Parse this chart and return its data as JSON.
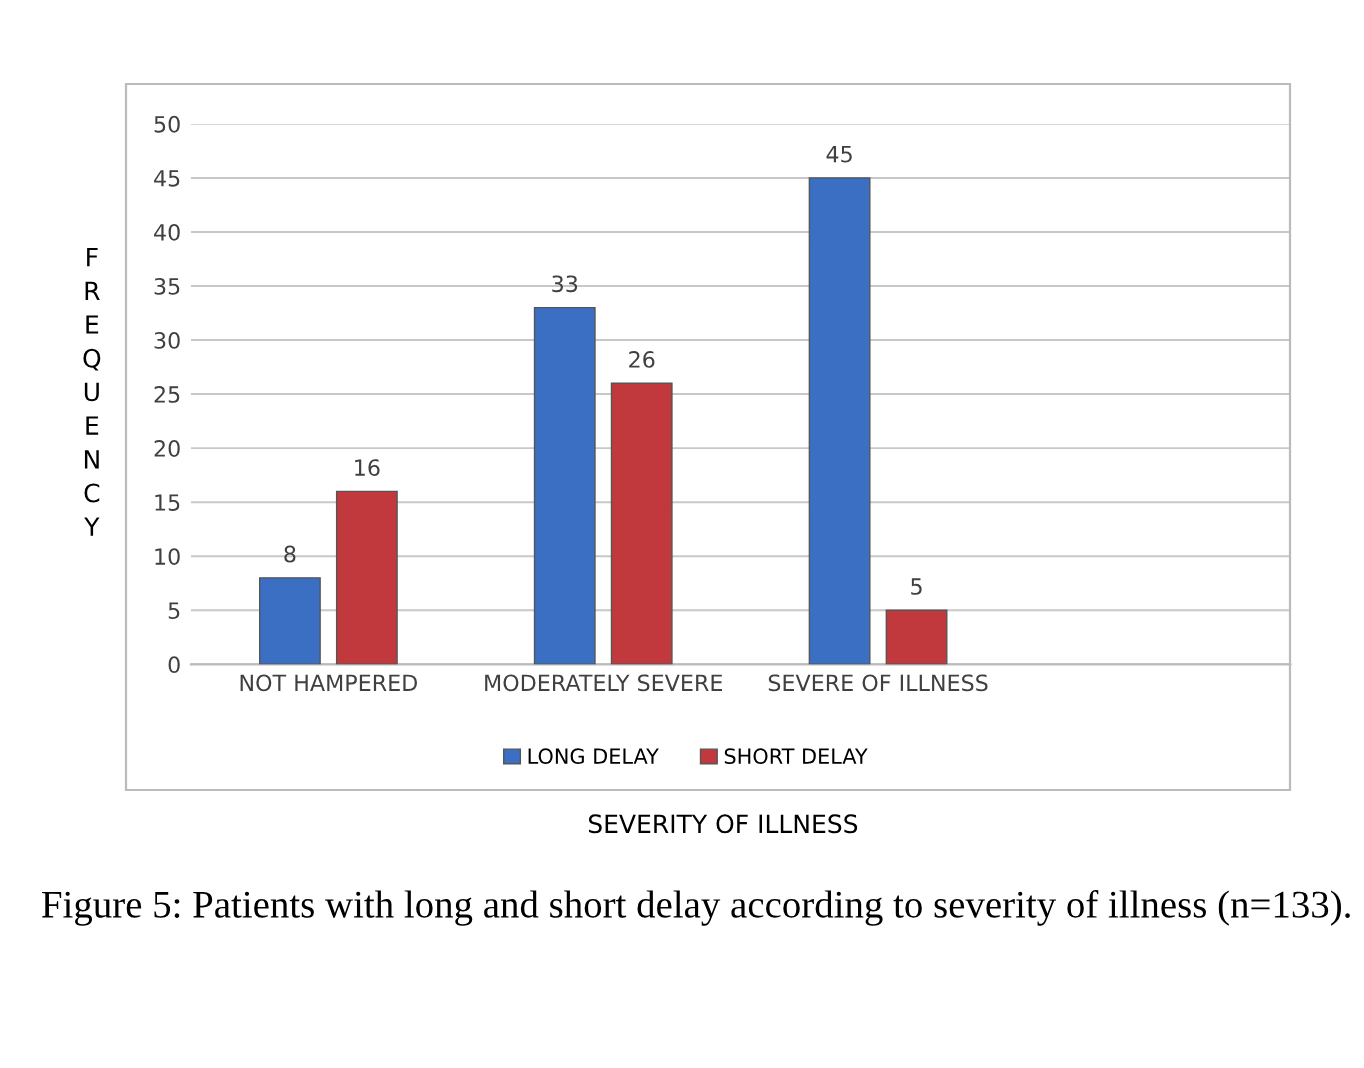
{
  "chart_data": {
    "type": "bar",
    "xlabel": "SEVERITY OF ILLNESS",
    "ylabel": "FREQUENCY",
    "categories": [
      "NOT HAMPERED",
      "MODERATELY SEVERE",
      "SEVERE OF ILLNESS"
    ],
    "series": [
      {
        "name": "LONG DELAY",
        "color": "#3b6fc4",
        "values": [
          8,
          33,
          45
        ]
      },
      {
        "name": "SHORT DELAY",
        "color": "#c1393c",
        "values": [
          16,
          26,
          5
        ]
      }
    ],
    "ylim": [
      0,
      50
    ],
    "yticks": [
      0,
      5,
      10,
      15,
      20,
      25,
      30,
      35,
      40,
      45,
      50
    ],
    "grid": "y",
    "legend": "bottom",
    "data_labels": true,
    "annotations": [
      "Figure 5: Patients with long and short delay according to severity of illness (n=133)."
    ]
  }
}
